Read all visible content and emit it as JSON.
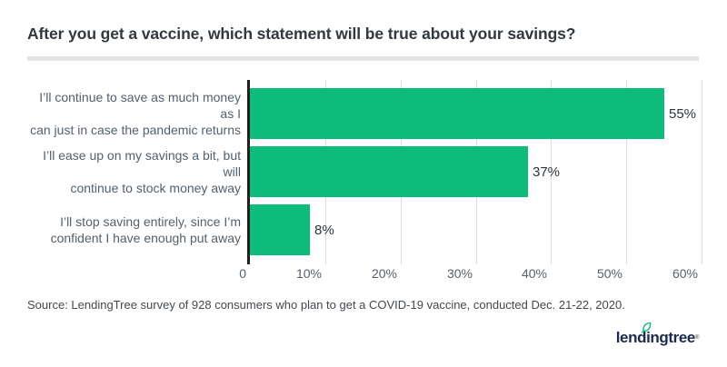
{
  "title": "After you get a vaccine, which statement will be true about your savings?",
  "source": "Source: LendingTree survey of 928 consumers who plan to get a COVID-19 vaccine, conducted Dec. 21-22, 2020.",
  "logo": {
    "text": "lendingtree",
    "reg": "®",
    "leaf_icon": "leaf-icon"
  },
  "colors": {
    "bar": "#0dbc7b",
    "axis": "#1f1f1f",
    "gridline": "#dddddd",
    "divider": "#e4e4e4",
    "title_text": "#32383f",
    "category_text": "#545f6a",
    "value_text": "#2e343a",
    "tick_text": "#566069",
    "source_text": "#42494f",
    "logo_navy": "#1c2b4a",
    "leaf_green": "#00b274",
    "background": "#ffffff"
  },
  "chart_data": {
    "type": "bar",
    "orientation": "horizontal",
    "title": "After you get a vaccine, which statement will be true about your savings?",
    "categories": [
      "I’ll continue to save as much money as I can just in case the pandemic returns",
      "I’ll ease up on my savings a bit, but will continue to stock money away",
      "I’ll stop saving entirely, since I’m confident I have enough put away"
    ],
    "label_lines": [
      [
        "I’ll continue to save as much money as I",
        "can just in case the pandemic returns"
      ],
      [
        "I’ll ease up on my savings a bit, but will",
        "continue to stock money away"
      ],
      [
        "I’ll stop saving entirely, since I’m",
        "confident I have enough put away"
      ]
    ],
    "values": [
      55,
      37,
      8
    ],
    "value_labels": [
      "55%",
      "37%",
      "8%"
    ],
    "x_ticks": [
      "0",
      "10%",
      "20%",
      "30%",
      "40%",
      "50%",
      "60%"
    ],
    "x_tick_values": [
      0,
      10,
      20,
      30,
      40,
      50,
      60
    ],
    "xlim": [
      0,
      60
    ],
    "grid": true,
    "legend": "none",
    "bar_color": "#0dbc7b"
  }
}
